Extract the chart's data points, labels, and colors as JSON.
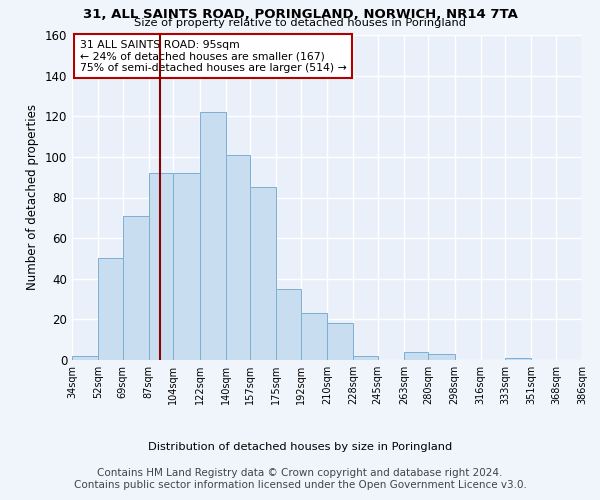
{
  "title": "31, ALL SAINTS ROAD, PORINGLAND, NORWICH, NR14 7TA",
  "subtitle": "Size of property relative to detached houses in Poringland",
  "xlabel": "Distribution of detached houses by size in Poringland",
  "ylabel": "Number of detached properties",
  "bar_color": "#c9ddf0",
  "bar_edge_color": "#7bafd4",
  "background_color": "#eaf0f9",
  "grid_color": "#ffffff",
  "vline_x": 95,
  "vline_color": "#8b0000",
  "annotation_text": "31 ALL SAINTS ROAD: 95sqm\n← 24% of detached houses are smaller (167)\n75% of semi-detached houses are larger (514) →",
  "annotation_box_edge": "#b00000",
  "bin_edges": [
    34,
    52,
    69,
    87,
    104,
    122,
    140,
    157,
    175,
    192,
    210,
    228,
    245,
    263,
    280,
    298,
    316,
    333,
    351,
    368,
    386
  ],
  "bin_counts": [
    2,
    50,
    71,
    92,
    92,
    122,
    101,
    85,
    35,
    23,
    18,
    2,
    0,
    4,
    3,
    0,
    0,
    1,
    0,
    0
  ],
  "ylim": [
    0,
    160
  ],
  "yticks": [
    0,
    20,
    40,
    60,
    80,
    100,
    120,
    140,
    160
  ],
  "footer": "Contains HM Land Registry data © Crown copyright and database right 2024.\nContains public sector information licensed under the Open Government Licence v3.0.",
  "footer_fontsize": 7.5
}
